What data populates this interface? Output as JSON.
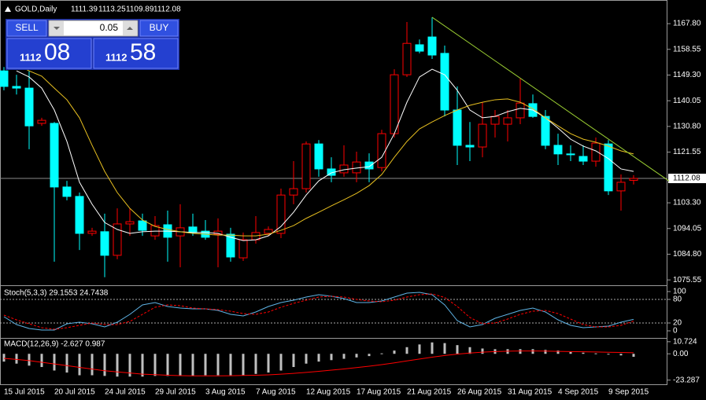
{
  "header_symbol_note": "GOLD,Daily",
  "trade_panel": {
    "sell": "SELL",
    "buy": "BUY",
    "lot": "0.05",
    "sell_big": "1112",
    "sell_small": "08",
    "buy_big": "1112",
    "buy_small": "58"
  },
  "chart_data": [
    {
      "type": "candlestick",
      "title": "GOLD,Daily",
      "categories": [
        "15 Jul 2015",
        null,
        null,
        null,
        "20 Jul 2015",
        null,
        null,
        null,
        "24 Jul 2015",
        null,
        null,
        null,
        "29 Jul 2015",
        null,
        null,
        null,
        "3 Aug 2015",
        null,
        null,
        null,
        "7 Aug 2015",
        null,
        null,
        null,
        "12 Aug 2015",
        null,
        null,
        null,
        "17 Aug 2015",
        null,
        null,
        null,
        "21 Aug 2015",
        null,
        null,
        null,
        "26 Aug 2015",
        null,
        null,
        null,
        "31 Aug 2015",
        null,
        null,
        null,
        "4 Sep 2015",
        null,
        null,
        null,
        "9 Sep 2015",
        null,
        null
      ],
      "open": [
        1150.8,
        1145.2,
        1144.6,
        1131.9,
        1131.9,
        1109.0,
        1105.6,
        1092.3,
        1092.9,
        1084.4,
        1095.7,
        1096.8,
        1091.4,
        1095.4,
        1091.4,
        1094.6,
        1093.1,
        1092.0,
        1092.0,
        1083.5,
        1090.0,
        1092.3,
        1092.3,
        1106.1,
        1108.4,
        1124.5,
        1115.5,
        1114.1,
        1114.1,
        1118.0,
        1116.0,
        1128.2,
        1149.4,
        1160.2,
        1163.0,
        1157.1,
        1136.7,
        1124.0,
        1123.4,
        1131.6,
        1131.6,
        1133.9,
        1139.0,
        1134.4,
        1124.0,
        1120.9,
        1120.0,
        1118.3,
        1124.5,
        1107.6,
        1111.39
      ],
      "high": [
        1152.2,
        1149.4,
        1150.8,
        1133.9,
        1132.4,
        1111.2,
        1107.0,
        1094.3,
        1099.4,
        1101.3,
        1101.3,
        1099.4,
        1098.5,
        1100.5,
        1102.8,
        1099.4,
        1097.1,
        1097.7,
        1094.3,
        1092.6,
        1098.5,
        1094.8,
        1108.4,
        1118.3,
        1125.4,
        1125.9,
        1119.7,
        1124.0,
        1121.7,
        1121.1,
        1129.6,
        1151.4,
        1168.4,
        1162.1,
        1170.1,
        1159.9,
        1145.2,
        1132.4,
        1139.5,
        1136.7,
        1136.7,
        1148.0,
        1142.3,
        1136.7,
        1128.2,
        1124.0,
        1124.0,
        1126.8,
        1125.9,
        1113.5,
        1113.25
      ],
      "low": [
        1143.8,
        1142.3,
        1122.6,
        1131.0,
        1082.1,
        1104.2,
        1086.3,
        1091.4,
        1076.5,
        1083.0,
        1091.4,
        1091.4,
        1090.0,
        1082.1,
        1080.1,
        1091.4,
        1090.0,
        1080.1,
        1082.1,
        1082.4,
        1088.6,
        1091.4,
        1090.6,
        1102.8,
        1107.0,
        1112.7,
        1110.7,
        1112.7,
        1110.7,
        1110.7,
        1114.6,
        1126.8,
        1148.6,
        1157.1,
        1155.1,
        1134.4,
        1116.9,
        1118.3,
        1119.7,
        1126.8,
        1125.4,
        1131.6,
        1133.9,
        1122.6,
        1116.9,
        1118.3,
        1116.9,
        1116.3,
        1106.1,
        1100.5,
        1109.89
      ],
      "close": [
        1145.2,
        1144.6,
        1131.0,
        1133.0,
        1109.0,
        1105.6,
        1092.3,
        1093.1,
        1084.4,
        1095.7,
        1096.5,
        1093.4,
        1095.1,
        1090.9,
        1094.3,
        1092.6,
        1090.9,
        1093.1,
        1083.8,
        1090.0,
        1092.6,
        1093.7,
        1106.1,
        1108.4,
        1124.5,
        1115.5,
        1113.2,
        1116.9,
        1118.0,
        1115.5,
        1128.2,
        1149.4,
        1160.7,
        1157.9,
        1156.5,
        1136.7,
        1124.0,
        1123.4,
        1131.6,
        1134.4,
        1133.9,
        1139.2,
        1134.4,
        1124.0,
        1120.9,
        1120.6,
        1118.3,
        1124.8,
        1107.6,
        1110.7,
        1112.08
      ],
      "up_color": "#ff0000",
      "down_color": "#00ffff",
      "lines": [
        {
          "color": "#ffffff",
          "values": [
            null,
            1150.8,
            1148.6,
            1144.6,
            1136.7,
            1125.4,
            1110.7,
            1102.8,
            1096.2,
            1093.7,
            1092.3,
            1092.9,
            1093.1,
            1093.1,
            1092.9,
            1092.6,
            1092.6,
            1092.3,
            1090.9,
            1089.7,
            1090.0,
            1091.4,
            1094.8,
            1099.9,
            1106.1,
            1111.2,
            1114.1,
            1115.2,
            1115.8,
            1116.3,
            1119.7,
            1128.2,
            1139.5,
            1148.6,
            1151.4,
            1149.4,
            1143.8,
            1136.7,
            1133.9,
            1134.4,
            1136.1,
            1137.3,
            1136.7,
            1133.9,
            1130.2,
            1126.2,
            1123.7,
            1122.0,
            1119.2,
            1115.5,
            1114.6
          ]
        },
        {
          "color": "#e8c020",
          "values": [
            null,
            1153.1,
            1150.8,
            1148.9,
            1144.6,
            1140.4,
            1133.9,
            1124.0,
            1114.6,
            1107.0,
            1101.3,
            1097.1,
            1094.8,
            1093.7,
            1092.9,
            1092.3,
            1092.0,
            1091.7,
            1091.7,
            1091.4,
            1091.4,
            1092.0,
            1093.4,
            1095.1,
            1097.7,
            1099.9,
            1102.2,
            1104.4,
            1106.7,
            1109.5,
            1113.5,
            1119.7,
            1125.4,
            1129.9,
            1132.4,
            1134.7,
            1136.7,
            1138.4,
            1139.5,
            1140.4,
            1140.7,
            1139.5,
            1137.2,
            1133.9,
            1131.0,
            1128.2,
            1126.2,
            1125.1,
            1123.7,
            1122.0,
            1120.9
          ]
        }
      ],
      "trendline": {
        "color": "#9acd32",
        "x": [
          34,
          52.8
        ],
        "y": [
          1170.1,
          1111.2
        ]
      },
      "ylim": [
        1073.9,
        1174.9
      ],
      "yticks": [
        {
          "value": 1167.8,
          "label": "1167.80"
        },
        {
          "value": 1158.55,
          "label": "1158.55"
        },
        {
          "value": 1149.3,
          "label": "1149.30"
        },
        {
          "value": 1140.05,
          "label": "1140.05"
        },
        {
          "value": 1130.8,
          "label": "1130.80"
        },
        {
          "value": 1121.55,
          "label": "1121.55"
        },
        {
          "value": 1103.3,
          "label": "1103.30"
        },
        {
          "value": 1094.05,
          "label": "1094.05"
        },
        {
          "value": 1084.8,
          "label": "1084.80"
        },
        {
          "value": 1075.55,
          "label": "1075.55"
        }
      ],
      "grid": false
    },
    {
      "type": "line",
      "title": "Stoch(5,3,3) 29.1553 24.7438",
      "series": [
        {
          "color": "#5fb4e6",
          "dashed": false,
          "values": [
            36,
            16,
            6,
            2,
            2,
            18,
            22,
            18,
            10,
            22,
            42,
            66,
            72,
            62,
            58,
            56,
            56,
            52,
            42,
            38,
            48,
            62,
            72,
            78,
            86,
            92,
            88,
            82,
            72,
            72,
            76,
            86,
            96,
            98,
            92,
            66,
            26,
            10,
            16,
            32,
            42,
            52,
            58,
            48,
            28,
            14,
            8,
            10,
            12,
            22,
            29.1553
          ]
        },
        {
          "color": "#ff0000",
          "dashed": true,
          "values": [
            40,
            28,
            18,
            8,
            4,
            8,
            14,
            20,
            16,
            16,
            24,
            42,
            60,
            66,
            64,
            58,
            56,
            54,
            50,
            44,
            42,
            48,
            60,
            70,
            78,
            86,
            88,
            86,
            80,
            76,
            74,
            78,
            86,
            92,
            94,
            85,
            62,
            34,
            18,
            20,
            30,
            42,
            50,
            52,
            44,
            30,
            16,
            10,
            10,
            14,
            24.7438
          ]
        }
      ],
      "levels": [
        20,
        80
      ],
      "ylim": [
        -14,
        112
      ],
      "yticks": [
        0,
        20,
        80,
        100
      ]
    },
    {
      "type": "macd",
      "title": "MACD(12,26,9) -2.627 0.987",
      "values": [
        -6.9,
        -8.7,
        -10.5,
        -11.7,
        -14.8,
        -16.6,
        -19.0,
        -19.0,
        -19.6,
        -20.2,
        -20.2,
        -20.2,
        -19.6,
        -19.6,
        -19.6,
        -19.6,
        -19.0,
        -19.0,
        -19.0,
        -19.0,
        -17.8,
        -16.6,
        -14.8,
        -11.7,
        -8.7,
        -6.9,
        -5.6,
        -4.4,
        -3.2,
        -2.0,
        0.4,
        2.9,
        5.9,
        8.3,
        10.1,
        9.5,
        7.7,
        5.9,
        4.7,
        4.1,
        4.1,
        4.1,
        4.1,
        3.5,
        2.9,
        1.6,
        1.0,
        0.4,
        -0.2,
        -1.4,
        -2.627
      ],
      "color": "#c0c0c0",
      "signal": [
        -4,
        -5,
        -6,
        -7.5,
        -9,
        -10.5,
        -12,
        -13.5,
        -15,
        -16,
        -17,
        -18,
        -18.5,
        -19,
        -19.3,
        -19.5,
        -19.5,
        -19.5,
        -19.4,
        -19.2,
        -19,
        -18.6,
        -18,
        -17.3,
        -16.5,
        -15.5,
        -14.5,
        -13.4,
        -12.2,
        -11,
        -9.6,
        -8,
        -6.3,
        -4.6,
        -3,
        -1.5,
        -0.3,
        0.7,
        1.5,
        2,
        2.3,
        2.5,
        2.5,
        2.4,
        2.2,
        2,
        1.8,
        1.6,
        1.4,
        1.2,
        0.987
      ],
      "signal_color": "#ff0000",
      "ylim": [
        -27,
        12
      ],
      "yticks": [
        10.724,
        {
          "value": 0,
          "label": "0.00"
        },
        -23.287
      ]
    }
  ]
}
